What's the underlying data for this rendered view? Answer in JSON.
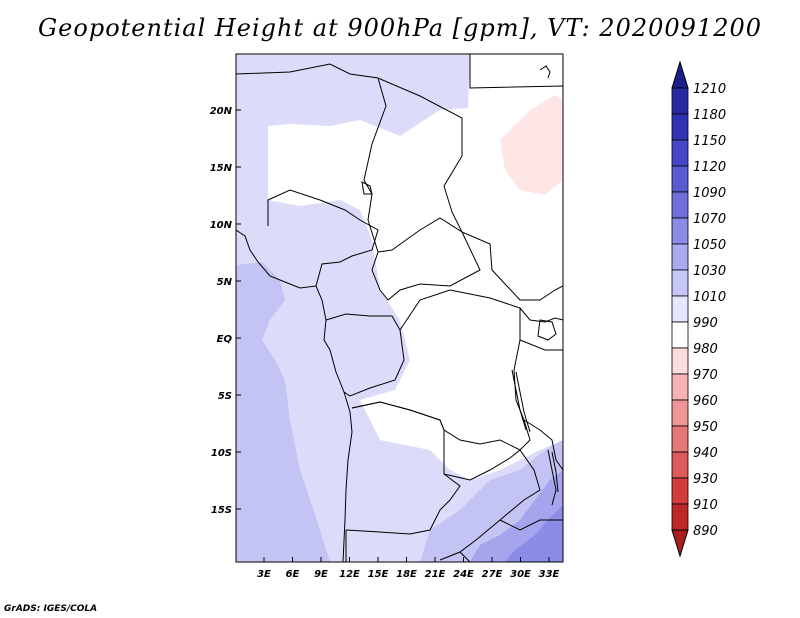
{
  "title": "Geopotential Height at 900hPa [gpm], VT: 2020091200",
  "credit": "GrADS: IGES/COLA",
  "map": {
    "lat_labels": [
      "20N",
      "15N",
      "10N",
      "5N",
      "EQ",
      "5S",
      "10S",
      "15S"
    ],
    "lon_labels": [
      "3E",
      "6E",
      "9E",
      "12E",
      "15E",
      "18E",
      "21E",
      "24E",
      "27E",
      "30E",
      "33E"
    ]
  },
  "colorbar": {
    "levels": [
      "1210",
      "1180",
      "1150",
      "1120",
      "1090",
      "1070",
      "1050",
      "1030",
      "1010",
      "990",
      "980",
      "970",
      "960",
      "950",
      "940",
      "930",
      "910",
      "890"
    ],
    "colors": [
      "#1e1e8c",
      "#2828a0",
      "#3232b4",
      "#4646c8",
      "#5a5ad2",
      "#7070dc",
      "#8c8ce6",
      "#aaaaf0",
      "#c8c8f8",
      "#e6e6ff",
      "#ffffff",
      "#ffdcdc",
      "#f8b4b4",
      "#f09696",
      "#e67878",
      "#dc5a5a",
      "#d23c3c",
      "#be2828",
      "#aa1e1e"
    ]
  }
}
